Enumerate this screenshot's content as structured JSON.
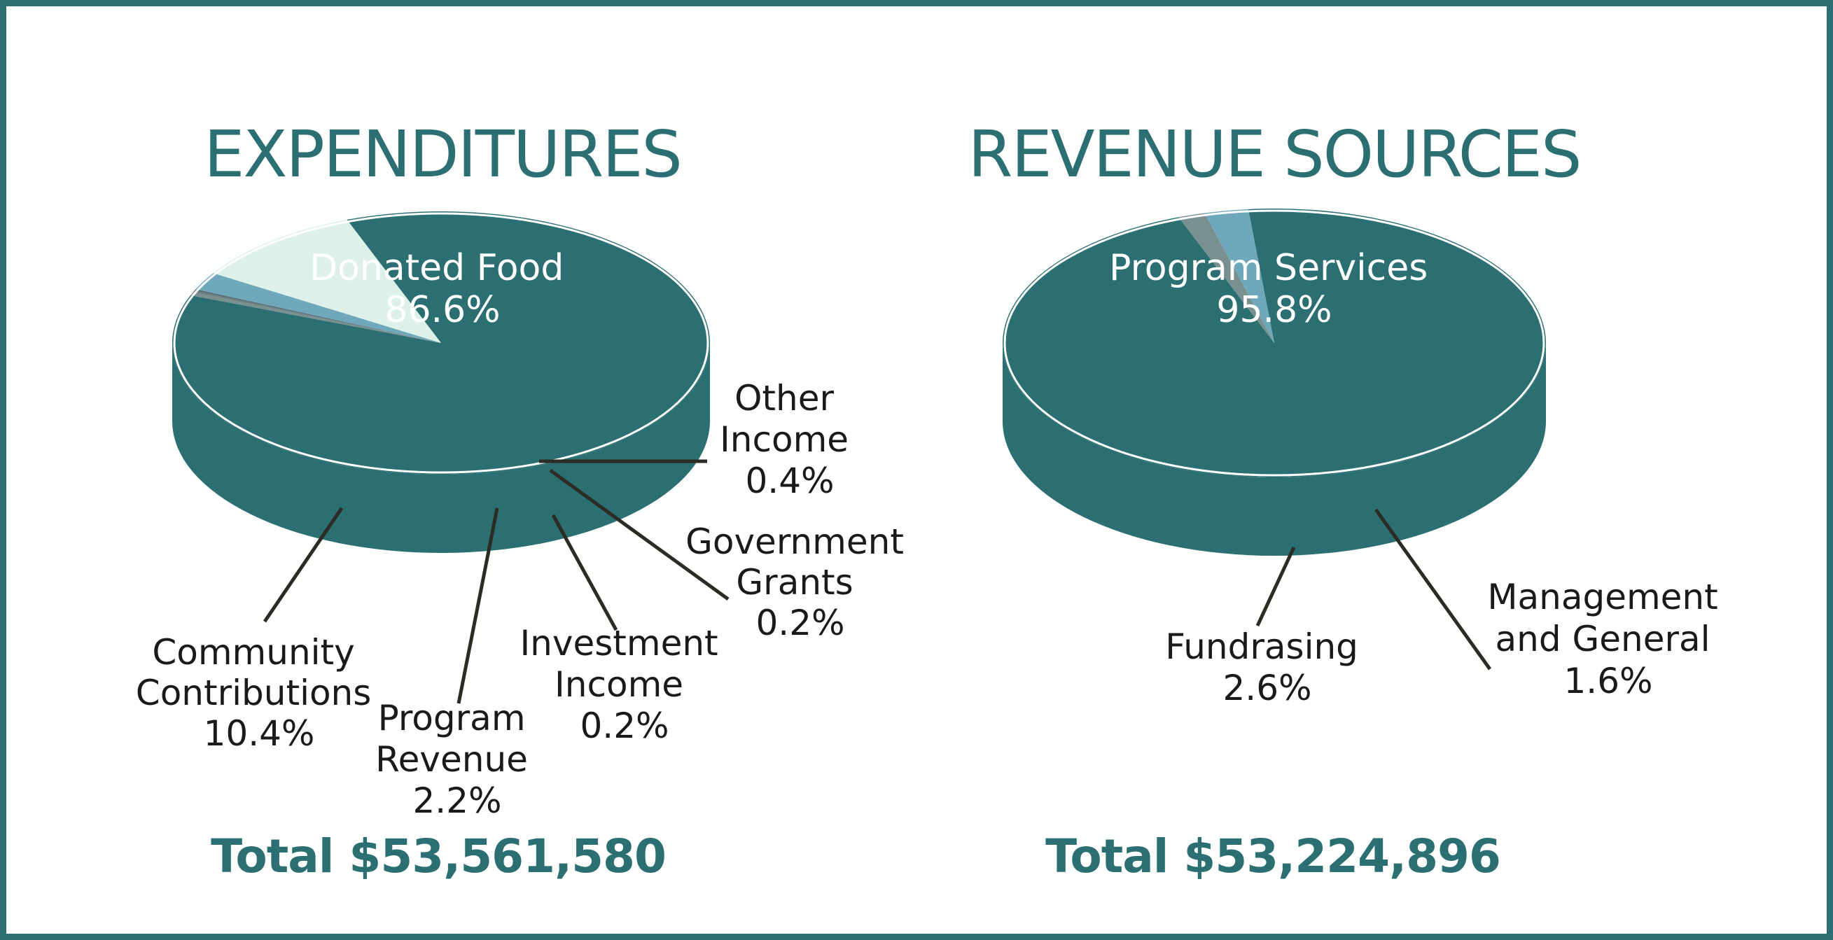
{
  "chart_data": [
    {
      "type": "pie",
      "title": "EXPENDITURES",
      "total": "Total $53,561,580",
      "slices": [
        {
          "label": [
            "Donated Food"
          ],
          "pct": "86.6%",
          "value": 86.6,
          "top": "#2b6f72",
          "side": "#2b6f72"
        },
        {
          "label": [
            "Other",
            "Income"
          ],
          "pct": "0.4%",
          "value": 0.4,
          "top": "#7a8f8f",
          "side": "#6a7e80"
        },
        {
          "label": [
            "Government",
            "Grants"
          ],
          "pct": "0.2%",
          "value": 0.2,
          "top": "#6b7f80",
          "side": "#5d7073"
        },
        {
          "label": [
            "Investment",
            "Income"
          ],
          "pct": "0.2%",
          "value": 0.2,
          "top": "#56707a",
          "side": "#4f6872"
        },
        {
          "label": [
            "Program",
            "Revenue"
          ],
          "pct": "2.2%",
          "value": 2.2,
          "top": "#6fa8ba",
          "side": "#5f95a7"
        },
        {
          "label": [
            "Community",
            "Contributions"
          ],
          "pct": "10.4%",
          "value": 10.4,
          "top": "#ddf1ea",
          "side": "#b5e0d2"
        }
      ]
    },
    {
      "type": "pie",
      "title": "REVENUE SOURCES",
      "total": "Total $53,224,896",
      "slices": [
        {
          "label": [
            "Program Services"
          ],
          "pct": "95.8%",
          "value": 95.8,
          "top": "#2b6f72",
          "side": "#2b6f72"
        },
        {
          "label": [
            "Management",
            "and General"
          ],
          "pct": "1.6%",
          "value": 1.6,
          "top": "#7a9090",
          "side": "#627274"
        },
        {
          "label": [
            "Fundrasing"
          ],
          "pct": "2.6%",
          "value": 2.6,
          "top": "#6fa8ba",
          "side": "#5f95a7"
        }
      ]
    }
  ]
}
